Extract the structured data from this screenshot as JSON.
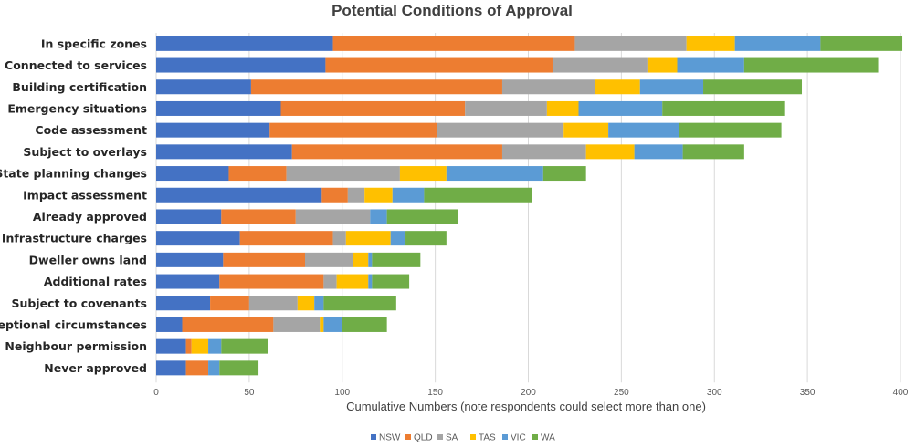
{
  "chart_data": {
    "type": "bar",
    "orientation": "horizontal",
    "stacked": true,
    "title": "Potential Conditions of Approval",
    "xlabel": "Cumulative Numbers (note respondents could select more than one)",
    "ylabel": "",
    "xlim": [
      0,
      400
    ],
    "xticks": [
      0,
      50,
      100,
      150,
      200,
      250,
      300,
      350,
      400
    ],
    "grid": "vertical",
    "legend_position": "bottom",
    "categories": [
      "In specific zones",
      "Connected to services",
      "Building certification",
      "Emergency situations",
      "Code assessment",
      "Subject to overlays",
      "State planning changes",
      "Impact assessment",
      "Already approved",
      "Infrastructure charges",
      "Dweller owns land",
      "Additional rates",
      "Subject to covenants",
      "Exceptional circumstances",
      "Neighbour permission",
      "Never approved"
    ],
    "series": [
      {
        "name": "NSW",
        "color": "#4472C4",
        "values": [
          95,
          91,
          51,
          67,
          61,
          73,
          39,
          89,
          35,
          45,
          36,
          34,
          29,
          14,
          16,
          16
        ]
      },
      {
        "name": "QLD",
        "color": "#ED7D31",
        "values": [
          130,
          122,
          135,
          99,
          90,
          113,
          31,
          14,
          40,
          50,
          44,
          56,
          21,
          49,
          3,
          12
        ]
      },
      {
        "name": "SA",
        "color": "#A5A5A5",
        "values": [
          60,
          51,
          50,
          44,
          68,
          45,
          61,
          9,
          40,
          7,
          26,
          7,
          26,
          25,
          0,
          0
        ]
      },
      {
        "name": "TAS",
        "color": "#FFC000",
        "values": [
          26,
          16,
          24,
          17,
          24,
          26,
          25,
          15,
          0,
          24,
          8,
          17,
          9,
          2,
          9,
          0
        ]
      },
      {
        "name": "VIC",
        "color": "#5B9BD5",
        "values": [
          46,
          36,
          34,
          45,
          38,
          26,
          52,
          17,
          9,
          8,
          2,
          2,
          5,
          10,
          7,
          6
        ]
      },
      {
        "name": "WA",
        "color": "#70AD47",
        "values": [
          44,
          72,
          53,
          66,
          55,
          33,
          23,
          58,
          38,
          22,
          26,
          20,
          39,
          24,
          25,
          21
        ]
      }
    ]
  }
}
